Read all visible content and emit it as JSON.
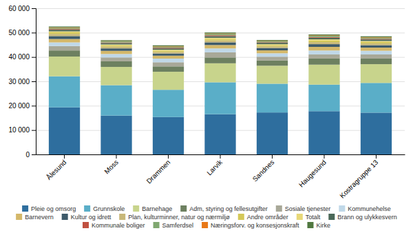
{
  "chart_data": {
    "type": "bar",
    "stacked": true,
    "categories": [
      "Ålesund",
      "Moss",
      "Drammen",
      "Larvik",
      "Sandnes",
      "Haugesund",
      "Kostragruppe 13"
    ],
    "series": [
      {
        "name": "Pleie og omsorg",
        "color": "#2e6e9e",
        "values": [
          19317,
          15946,
          15339,
          16507,
          17219,
          17754,
          17153
        ]
      },
      {
        "name": "Grunnskole",
        "color": "#5aaec8",
        "values": [
          12762,
          12477,
          11200,
          13100,
          11800,
          10900,
          12200
        ]
      },
      {
        "name": "Barnehage",
        "color": "#c8d48c",
        "values": [
          8100,
          7500,
          7400,
          7800,
          7400,
          8200,
          7700
        ]
      },
      {
        "name": "Adm, styring og fellesutgifter",
        "color": "#6d8060",
        "values": [
          2500,
          2300,
          2200,
          2400,
          2200,
          2500,
          2300
        ]
      },
      {
        "name": "Sosiale tjenester",
        "color": "#a8a898",
        "values": [
          1800,
          1600,
          1700,
          2100,
          1500,
          1700,
          1700
        ]
      },
      {
        "name": "Kommunehelse",
        "color": "#c0d8e8",
        "values": [
          1500,
          1400,
          1500,
          1600,
          1400,
          1600,
          1500
        ]
      },
      {
        "name": "Barnevern",
        "color": "#d4b86a",
        "values": [
          1400,
          1300,
          1200,
          1400,
          1200,
          1500,
          1300
        ]
      },
      {
        "name": "Kultur og idrett",
        "color": "#3d5a6a",
        "values": [
          1200,
          1000,
          900,
          1100,
          1000,
          1100,
          1000
        ]
      },
      {
        "name": "Plan, kulturminner, natur og nærmiljø",
        "color": "#c8b87a",
        "values": [
          900,
          750,
          650,
          800,
          650,
          850,
          750
        ]
      },
      {
        "name": "Andre områder",
        "color": "#d4c858",
        "values": [
          600,
          500,
          500,
          600,
          500,
          650,
          550
        ]
      },
      {
        "name": "Totalt",
        "color": "#e8d878",
        "values": [
          450,
          380,
          380,
          480,
          380,
          480,
          430
        ]
      },
      {
        "name": "Brann og ulykkesvern",
        "color": "#4a6858",
        "values": [
          650,
          580,
          560,
          680,
          560,
          650,
          620
        ]
      },
      {
        "name": "Kommunale boliger",
        "color": "#c05040",
        "values": [
          280,
          230,
          280,
          330,
          230,
          280,
          260
        ]
      },
      {
        "name": "Samferdsel",
        "color": "#80a870",
        "values": [
          480,
          430,
          480,
          570,
          430,
          520,
          480
        ]
      },
      {
        "name": "Næringsforv. og konsesjonskraft",
        "color": "#e87818",
        "values": [
          190,
          140,
          140,
          190,
          140,
          190,
          170
        ]
      },
      {
        "name": "Kirke",
        "color": "#507840",
        "values": [
          380,
          360,
          360,
          400,
          360,
          380,
          370
        ]
      }
    ],
    "ylim": [
      0,
      60000
    ],
    "yticks": [
      0,
      {
        "value": 10000,
        "label": "10 000"
      },
      {
        "value": 20000,
        "label": "20 000"
      },
      {
        "value": 30000,
        "label": "30 000"
      },
      {
        "value": 40000,
        "label": "40 000"
      },
      {
        "value": 50000,
        "label": "50 000"
      },
      {
        "value": 60000,
        "label": "60 000"
      }
    ],
    "grid": true,
    "legend": "bottom"
  }
}
